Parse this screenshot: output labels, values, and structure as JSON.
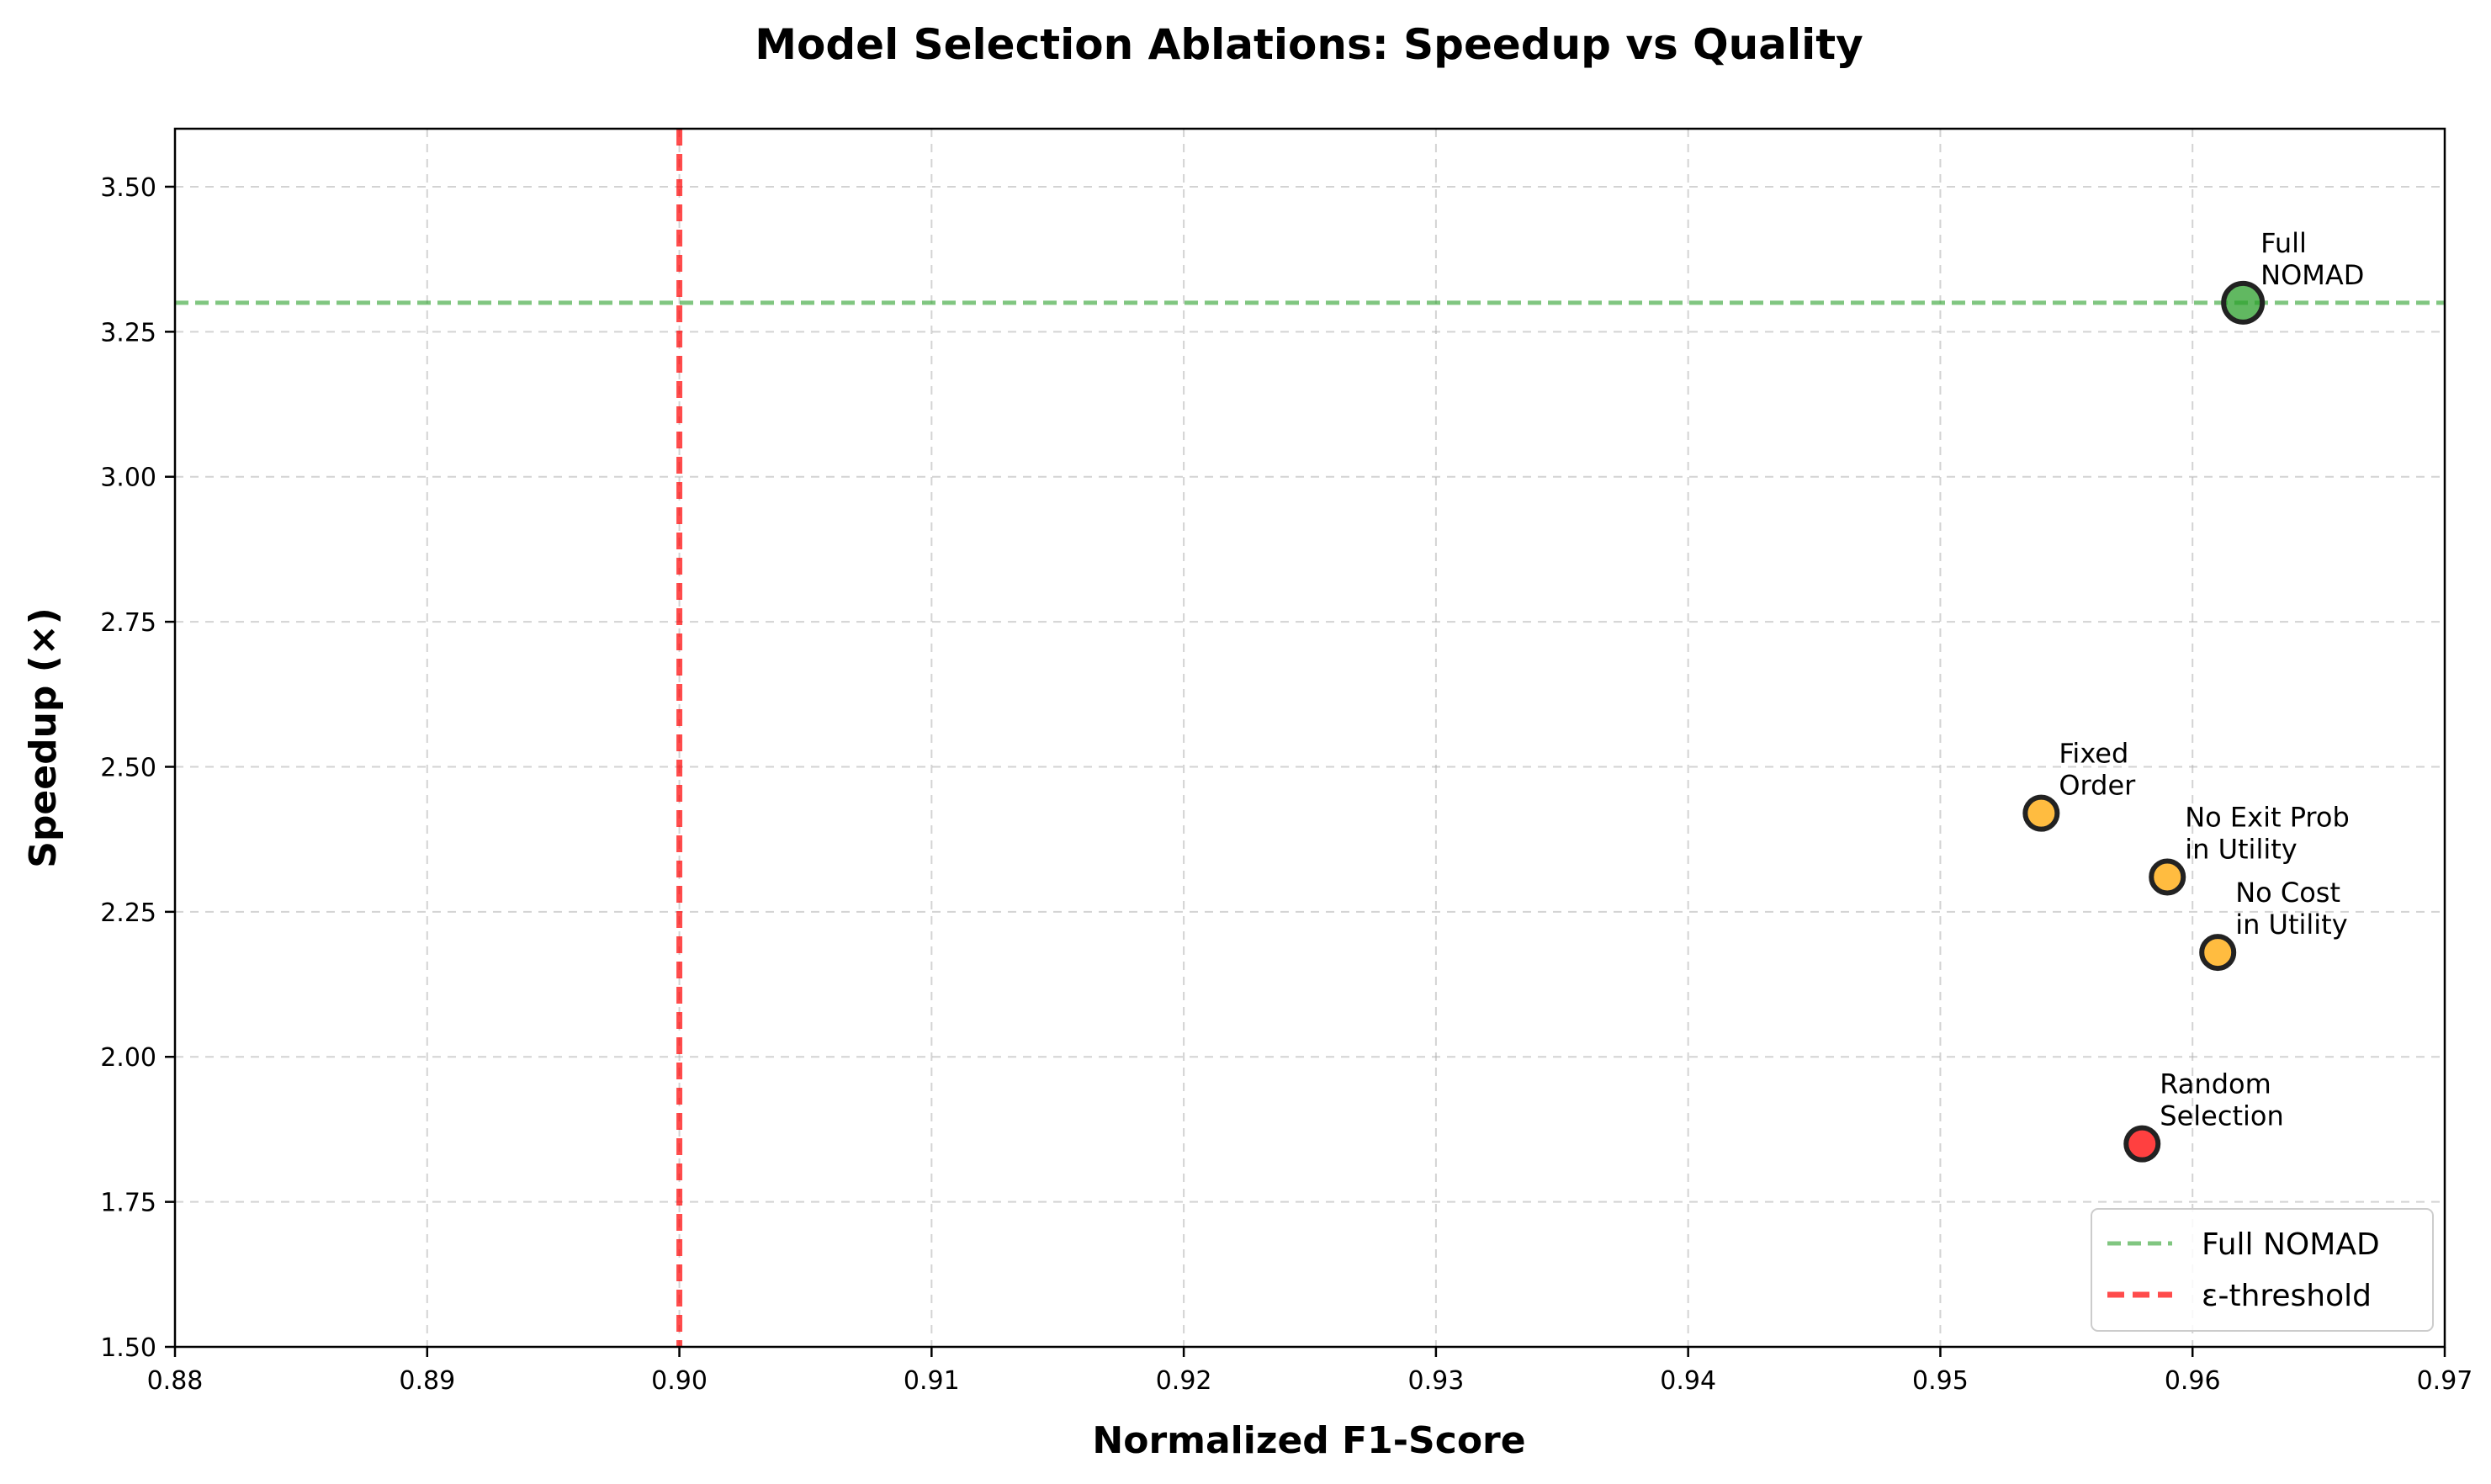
{
  "chart_data": {
    "type": "scatter",
    "title": "Model Selection Ablations: Speedup vs Quality",
    "xlabel": "Normalized F1-Score",
    "ylabel": "Speedup (×)",
    "xlim": [
      0.88,
      0.97
    ],
    "ylim": [
      1.5,
      3.6
    ],
    "xticks": [
      0.88,
      0.89,
      0.9,
      0.91,
      0.92,
      0.93,
      0.94,
      0.95,
      0.96,
      0.97
    ],
    "xtick_labels": [
      "0.88",
      "0.89",
      "0.90",
      "0.91",
      "0.92",
      "0.93",
      "0.94",
      "0.95",
      "0.96",
      "0.97"
    ],
    "yticks": [
      1.5,
      1.75,
      2.0,
      2.25,
      2.5,
      2.75,
      3.0,
      3.25,
      3.5
    ],
    "ytick_labels": [
      "1.50",
      "1.75",
      "2.00",
      "2.25",
      "2.50",
      "2.75",
      "3.00",
      "3.25",
      "3.50"
    ],
    "grid": true,
    "points": [
      {
        "label_lines": [
          "Full",
          "NOMAD"
        ],
        "x": 0.962,
        "y": 3.3,
        "color": "#2ca02c",
        "large": true
      },
      {
        "label_lines": [
          "Fixed",
          "Order"
        ],
        "x": 0.954,
        "y": 2.42,
        "color": "#ffa500",
        "large": false
      },
      {
        "label_lines": [
          "No Exit Prob",
          "in Utility"
        ],
        "x": 0.959,
        "y": 2.31,
        "color": "#ffa500",
        "large": false
      },
      {
        "label_lines": [
          "No Cost",
          "in Utility"
        ],
        "x": 0.961,
        "y": 2.18,
        "color": "#ffa500",
        "large": false
      },
      {
        "label_lines": [
          "Random",
          "Selection"
        ],
        "x": 0.958,
        "y": 1.85,
        "color": "#ff0000",
        "large": false
      }
    ],
    "reference_lines": [
      {
        "name": "Full NOMAD",
        "orientation": "horizontal",
        "value": 3.3,
        "color": "#2ca02c",
        "style": "dashed"
      },
      {
        "name": "ε-threshold",
        "orientation": "vertical",
        "value": 0.9,
        "color": "#ff0000",
        "style": "dashed"
      }
    ],
    "legend": {
      "position": "lower-right",
      "entries": [
        "Full NOMAD",
        "ε-threshold"
      ]
    }
  }
}
